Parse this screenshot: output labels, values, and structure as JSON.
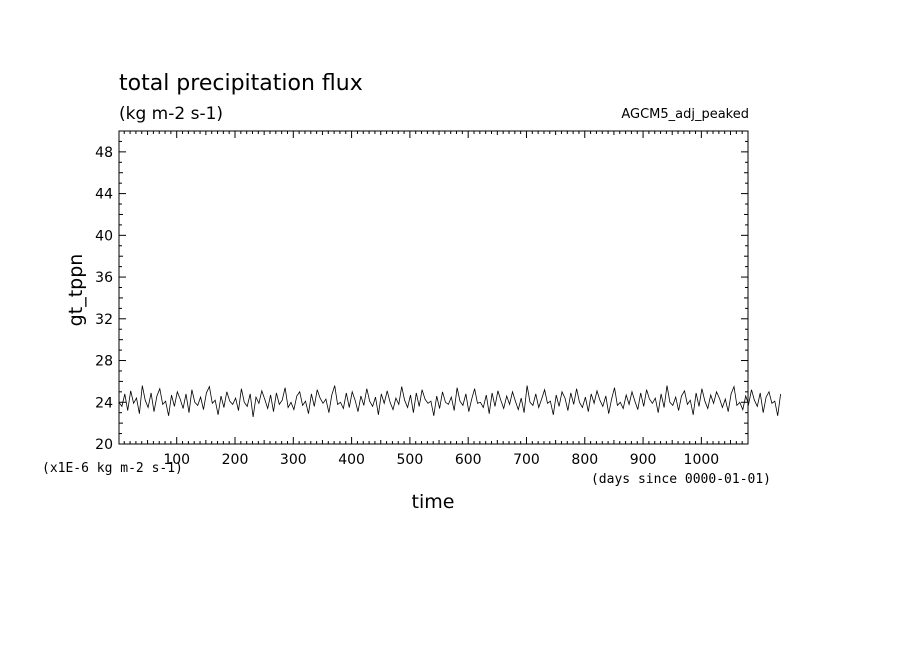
{
  "chart_data": {
    "type": "line",
    "title": "total precipitation flux",
    "subtitle": "(kg m-2 s-1)",
    "experiment_label": "AGCM5_adj_peaked",
    "xlabel": "time",
    "x_unit_note": "(days since 0000-01-01)",
    "ylabel": "gt_tppn",
    "y_scale_note": "(x1E-6 kg m-2 s-1)",
    "xlim": [
      1,
      1080
    ],
    "ylim": [
      20,
      50
    ],
    "x_ticks": [
      100,
      200,
      300,
      400,
      500,
      600,
      700,
      800,
      900,
      1000
    ],
    "y_ticks": [
      20,
      24,
      28,
      32,
      36,
      40,
      44,
      48
    ],
    "grid": false,
    "series": [
      {
        "x_start": 1,
        "x_step": 5,
        "values": [
          24.0,
          23.6,
          24.8,
          23.2,
          25.1,
          23.9,
          24.4,
          22.9,
          25.6,
          24.2,
          23.5,
          24.9,
          23.1,
          24.6,
          25.3,
          23.8,
          24.1,
          22.7,
          24.7,
          23.6,
          25.0,
          24.3,
          23.4,
          24.8,
          23.0,
          25.2,
          24.0,
          23.7,
          24.5,
          23.3,
          24.9,
          25.5,
          23.9,
          24.2,
          22.8,
          24.6,
          23.5,
          25.0,
          24.1,
          23.8,
          24.4,
          23.2,
          25.3,
          24.0,
          23.6,
          24.8,
          22.6,
          24.5,
          23.9,
          25.1,
          24.3,
          23.4,
          24.7,
          23.1,
          24.9,
          23.8,
          24.2,
          25.4,
          23.5,
          24.0,
          23.3,
          24.6,
          25.0,
          23.7,
          24.1,
          22.9,
          24.8,
          23.6,
          25.2,
          24.4,
          23.9,
          24.3,
          23.0,
          24.7,
          25.6,
          23.8,
          24.0,
          23.4,
          24.9,
          23.5,
          25.0,
          24.2,
          23.1,
          24.6,
          23.7,
          25.3,
          24.1,
          23.6,
          24.5,
          22.8,
          24.8,
          23.9,
          25.1,
          24.0,
          23.3,
          24.4,
          23.8,
          25.5,
          24.2,
          23.5,
          24.7,
          23.0,
          24.9,
          23.6,
          25.2,
          24.3,
          23.9,
          24.1,
          22.7,
          24.6,
          23.4,
          25.0,
          24.0,
          23.8,
          24.5,
          23.2,
          25.4,
          24.1,
          23.7,
          24.8,
          23.1,
          24.3,
          25.3,
          23.9,
          24.0,
          23.5,
          24.7,
          22.9,
          24.9,
          23.6,
          25.1,
          24.2,
          23.4,
          24.6,
          23.8,
          25.0,
          24.1,
          23.3,
          24.4,
          23.0,
          25.6,
          24.0,
          23.7,
          24.8,
          23.5,
          24.3,
          25.2,
          23.9,
          24.1,
          22.8,
          24.7,
          23.6,
          25.0,
          24.4,
          23.2,
          24.9,
          23.8,
          25.3,
          24.0,
          23.5,
          24.5,
          23.1,
          24.8,
          23.9,
          25.1,
          24.2,
          23.6,
          24.6,
          22.9,
          24.3,
          25.4,
          23.7,
          24.0,
          23.4,
          24.7,
          23.8,
          25.0,
          24.1,
          23.3,
          24.9,
          23.6,
          25.2,
          24.3,
          23.9,
          24.4,
          23.0,
          24.8,
          23.5,
          25.6,
          24.0,
          23.7,
          24.5,
          23.2,
          24.6,
          25.1,
          23.8,
          24.2,
          22.8,
          24.9,
          23.6,
          25.3,
          24.1,
          23.4,
          24.7,
          23.9,
          25.0,
          24.4,
          23.5,
          24.3,
          23.1,
          24.8,
          25.5,
          23.7,
          24.0,
          23.3,
          24.6,
          23.8,
          25.2,
          24.2,
          23.6,
          24.9,
          23.0,
          24.5,
          25.0,
          23.9,
          24.1,
          22.7,
          24.8
        ]
      }
    ]
  }
}
